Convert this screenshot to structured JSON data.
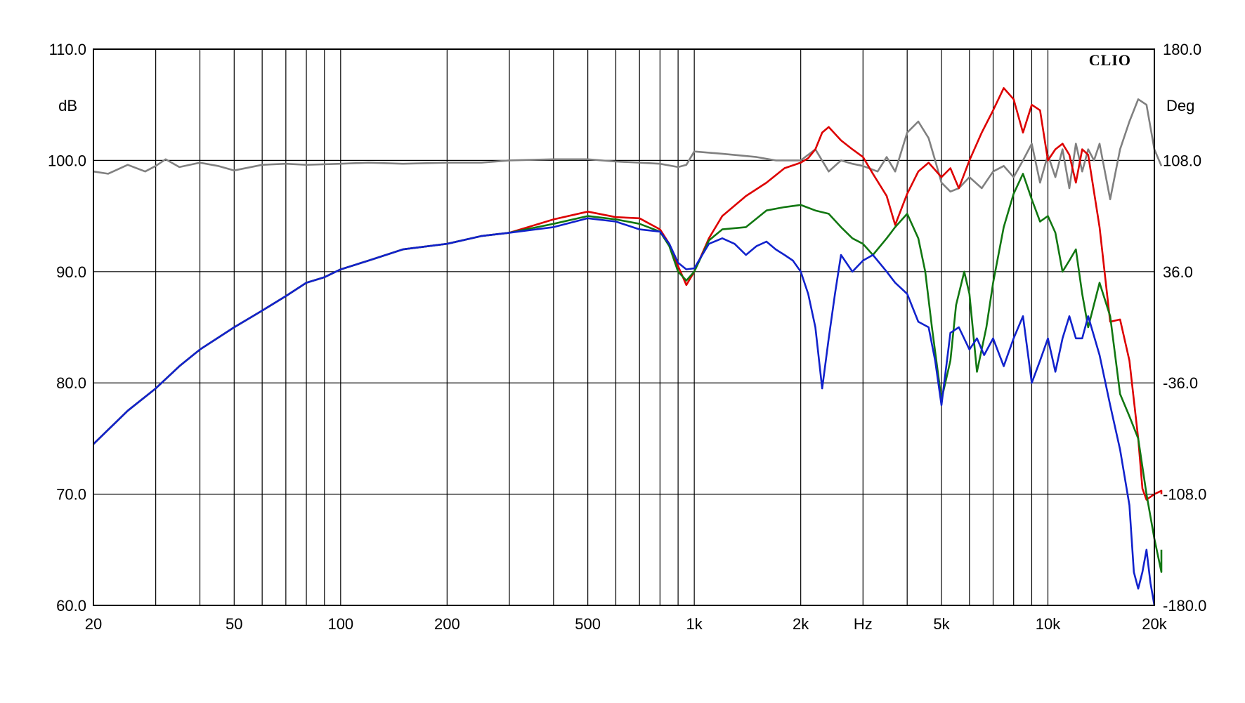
{
  "chart_data": {
    "type": "line",
    "title": "",
    "brand": "CLIO",
    "xlabel": "Hz",
    "ylabel": "dB",
    "y2label": "Deg",
    "x_scale": "log",
    "xlim": [
      20,
      20000
    ],
    "ylim": [
      60,
      110
    ],
    "y2lim": [
      -180,
      180
    ],
    "grid": true,
    "x_gridlines": [
      20,
      30,
      40,
      50,
      60,
      70,
      80,
      90,
      100,
      200,
      300,
      400,
      500,
      600,
      700,
      800,
      900,
      1000,
      2000,
      3000,
      4000,
      5000,
      6000,
      7000,
      8000,
      9000,
      10000,
      20000
    ],
    "x_ticks": [
      {
        "value": 20,
        "label": "20"
      },
      {
        "value": 50,
        "label": "50"
      },
      {
        "value": 100,
        "label": "100"
      },
      {
        "value": 200,
        "label": "200"
      },
      {
        "value": 500,
        "label": "500"
      },
      {
        "value": 1000,
        "label": "1k"
      },
      {
        "value": 2000,
        "label": "2k"
      },
      {
        "value": 3000,
        "label": "Hz"
      },
      {
        "value": 5000,
        "label": "5k"
      },
      {
        "value": 10000,
        "label": "10k"
      },
      {
        "value": 20000,
        "label": "20k"
      }
    ],
    "y_ticks": [
      {
        "value": 110,
        "label": "110.0"
      },
      {
        "value": 100,
        "label": "100.0"
      },
      {
        "value": 90,
        "label": "90.0"
      },
      {
        "value": 80,
        "label": "80.0"
      },
      {
        "value": 70,
        "label": "70.0"
      },
      {
        "value": 60,
        "label": "60.0"
      }
    ],
    "y2_ticks": [
      {
        "value": 180,
        "label": "180.0"
      },
      {
        "value": 108,
        "label": "108.0"
      },
      {
        "value": 36,
        "label": "36.0"
      },
      {
        "value": -36,
        "label": "-36.0"
      },
      {
        "value": -108,
        "label": "-108.0"
      },
      {
        "value": -180,
        "label": "-180.0"
      }
    ],
    "series": [
      {
        "color": "#808080",
        "x": [
          20,
          22,
          25,
          28,
          30,
          32,
          35,
          40,
          45,
          50,
          60,
          70,
          80,
          100,
          120,
          150,
          200,
          250,
          300,
          400,
          500,
          600,
          700,
          800,
          900,
          950,
          1000,
          1200,
          1500,
          1700,
          2000,
          2200,
          2400,
          2600,
          2800,
          3000,
          3300,
          3500,
          3700,
          4000,
          4300,
          4600,
          4800,
          5000,
          5300,
          5600,
          6000,
          6500,
          7000,
          7500,
          8000,
          8500,
          9000,
          9500,
          10000,
          10500,
          11000,
          11500,
          12000,
          12500,
          13000,
          13500,
          14000,
          15000,
          16000,
          17000,
          18000,
          19000,
          20000,
          21000,
          22000
        ],
        "values": [
          99.0,
          98.8,
          99.6,
          99.0,
          99.5,
          100.1,
          99.4,
          99.8,
          99.5,
          99.1,
          99.6,
          99.7,
          99.6,
          99.7,
          99.8,
          99.7,
          99.8,
          99.8,
          100.0,
          100.1,
          100.1,
          99.9,
          99.8,
          99.7,
          99.4,
          99.6,
          100.8,
          100.6,
          100.3,
          100.0,
          100.0,
          101.0,
          99.0,
          100.0,
          99.7,
          99.5,
          99.0,
          100.3,
          99.0,
          102.5,
          103.5,
          102.0,
          100.0,
          98.0,
          97.2,
          97.5,
          98.5,
          97.5,
          99.0,
          99.5,
          98.5,
          100.0,
          101.5,
          98.0,
          100.5,
          98.5,
          101.0,
          97.5,
          101.5,
          99.0,
          101.0,
          100.0,
          101.5,
          96.5,
          101.0,
          103.5,
          105.5,
          105.0,
          101.0,
          99.5,
          99.5
        ]
      },
      {
        "color": "#dd0000",
        "x": [
          20,
          25,
          30,
          35,
          40,
          50,
          60,
          70,
          80,
          90,
          100,
          120,
          150,
          200,
          250,
          300,
          400,
          500,
          600,
          700,
          800,
          850,
          900,
          950,
          1000,
          1100,
          1200,
          1400,
          1600,
          1800,
          2000,
          2100,
          2200,
          2300,
          2400,
          2600,
          2800,
          3000,
          3200,
          3500,
          3700,
          4000,
          4300,
          4600,
          5000,
          5300,
          5600,
          6000,
          6500,
          7000,
          7500,
          8000,
          8500,
          9000,
          9500,
          10000,
          10500,
          11000,
          11500,
          12000,
          12500,
          13000,
          14000,
          15000,
          16000,
          17000,
          18000,
          18500,
          19000,
          20000,
          21000,
          22000
        ],
        "values": [
          74.5,
          77.5,
          79.5,
          81.5,
          83.0,
          85.0,
          86.5,
          87.8,
          89.0,
          89.5,
          90.2,
          91.0,
          92.0,
          92.5,
          93.2,
          93.5,
          94.7,
          95.4,
          94.9,
          94.8,
          93.8,
          92.5,
          90.5,
          88.8,
          90.0,
          93.0,
          95.0,
          96.8,
          98.0,
          99.3,
          99.8,
          100.2,
          101.0,
          102.5,
          103.0,
          101.8,
          101.0,
          100.3,
          98.8,
          96.8,
          94.2,
          97.0,
          99.0,
          99.8,
          98.5,
          99.3,
          97.5,
          100.0,
          102.5,
          104.5,
          106.5,
          105.5,
          102.5,
          105.0,
          104.5,
          100.0,
          101.0,
          101.5,
          100.5,
          98.0,
          101.0,
          100.5,
          94.0,
          85.5,
          85.7,
          82.0,
          75.0,
          70.5,
          69.5,
          70.0,
          70.3,
          70.0
        ]
      },
      {
        "color": "#117711",
        "x": [
          20,
          25,
          30,
          35,
          40,
          50,
          60,
          70,
          80,
          90,
          100,
          120,
          150,
          200,
          250,
          300,
          400,
          500,
          600,
          700,
          800,
          850,
          900,
          950,
          1000,
          1100,
          1200,
          1400,
          1600,
          1800,
          2000,
          2200,
          2400,
          2600,
          2800,
          3000,
          3200,
          3500,
          3700,
          4000,
          4300,
          4500,
          4700,
          5000,
          5300,
          5500,
          5800,
          6000,
          6300,
          6700,
          7000,
          7500,
          8000,
          8500,
          9000,
          9500,
          10000,
          10500,
          11000,
          11500,
          12000,
          12500,
          13000,
          14000,
          15000,
          16000,
          17000,
          18000,
          19000,
          20000,
          21000,
          22000
        ],
        "values": [
          74.5,
          77.5,
          79.5,
          81.5,
          83.0,
          85.0,
          86.5,
          87.8,
          89.0,
          89.5,
          90.2,
          91.0,
          92.0,
          92.5,
          93.2,
          93.5,
          94.3,
          95.0,
          94.7,
          94.3,
          93.6,
          92.3,
          90.0,
          89.2,
          90.0,
          92.8,
          93.8,
          94.0,
          95.5,
          95.8,
          96.0,
          95.5,
          95.2,
          94.0,
          93.0,
          92.5,
          91.5,
          93.0,
          94.0,
          95.2,
          93.0,
          90.0,
          85.0,
          78.5,
          82.0,
          87.0,
          90.0,
          88.0,
          81.0,
          85.0,
          89.0,
          94.0,
          97.0,
          98.8,
          96.5,
          94.5,
          95.0,
          93.5,
          90.0,
          91.0,
          92.0,
          88.0,
          85.0,
          89.0,
          86.0,
          79.0,
          77.0,
          75.0,
          70.0,
          66.0,
          63.0,
          65.0
        ]
      },
      {
        "color": "#1122cc",
        "x": [
          20,
          25,
          30,
          35,
          40,
          50,
          60,
          70,
          80,
          90,
          100,
          120,
          150,
          200,
          250,
          300,
          400,
          500,
          600,
          700,
          800,
          850,
          900,
          950,
          1000,
          1100,
          1200,
          1300,
          1400,
          1500,
          1600,
          1700,
          1800,
          1900,
          2000,
          2100,
          2200,
          2300,
          2400,
          2500,
          2600,
          2800,
          3000,
          3200,
          3500,
          3700,
          4000,
          4300,
          4600,
          4800,
          5000,
          5300,
          5600,
          6000,
          6300,
          6600,
          7000,
          7500,
          8000,
          8500,
          9000,
          9500,
          10000,
          10500,
          11000,
          11500,
          12000,
          12500,
          13000,
          14000,
          15000,
          16000,
          17000,
          17500,
          18000,
          18500,
          19000,
          19500,
          20000
        ],
        "values": [
          74.5,
          77.5,
          79.5,
          81.5,
          83.0,
          85.0,
          86.5,
          87.8,
          89.0,
          89.5,
          90.2,
          91.0,
          92.0,
          92.5,
          93.2,
          93.5,
          94.0,
          94.8,
          94.5,
          93.8,
          93.6,
          92.5,
          90.8,
          90.2,
          90.3,
          92.5,
          93.0,
          92.5,
          91.5,
          92.3,
          92.7,
          92.0,
          91.5,
          91.0,
          90.0,
          88.0,
          85.0,
          79.5,
          84.0,
          88.0,
          91.5,
          90.0,
          91.0,
          91.5,
          90.0,
          89.0,
          88.0,
          85.5,
          85.0,
          82.0,
          78.0,
          84.5,
          85.0,
          83.0,
          84.0,
          82.5,
          84.0,
          81.5,
          84.0,
          86.0,
          80.0,
          82.0,
          84.0,
          81.0,
          84.0,
          86.0,
          84.0,
          84.0,
          86.0,
          82.5,
          78.0,
          74.0,
          69.0,
          63.0,
          61.5,
          63.0,
          65.0,
          62.0,
          60.0
        ]
      }
    ]
  }
}
